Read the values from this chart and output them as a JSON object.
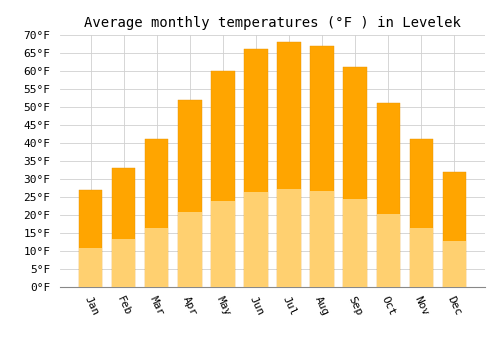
{
  "title": "Average monthly temperatures (°F ) in Levelek",
  "months": [
    "Jan",
    "Feb",
    "Mar",
    "Apr",
    "May",
    "Jun",
    "Jul",
    "Aug",
    "Sep",
    "Oct",
    "Nov",
    "Dec"
  ],
  "values": [
    27,
    33,
    41,
    52,
    60,
    66,
    68,
    67,
    61,
    51,
    41,
    32
  ],
  "bar_color_top": "#FFA500",
  "bar_color_bottom": "#FFD070",
  "bar_edge_color": "#E89400",
  "ylim": [
    0,
    70
  ],
  "yticks": [
    0,
    5,
    10,
    15,
    20,
    25,
    30,
    35,
    40,
    45,
    50,
    55,
    60,
    65,
    70
  ],
  "background_color": "#ffffff",
  "plot_bg_color": "#ffffff",
  "grid_color": "#d0d0d0",
  "title_fontsize": 10,
  "tick_fontsize": 8,
  "font_family": "monospace",
  "xlabel_rotation": -65
}
